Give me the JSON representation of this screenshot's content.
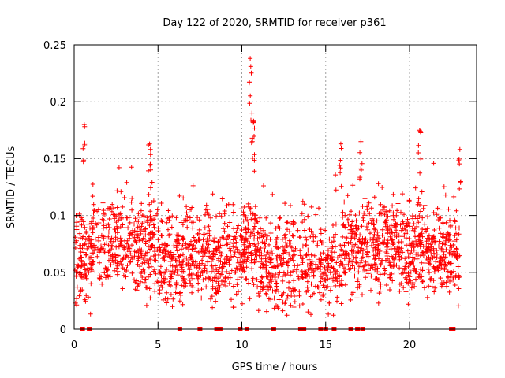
{
  "chart_data": {
    "type": "scatter",
    "title": "Day 122 of 2020, SRMTID for receiver p361",
    "xlabel": "GPS time / hours",
    "ylabel": "SRMTID / TECUs",
    "xlim": [
      0,
      24
    ],
    "ylim": [
      0,
      0.25
    ],
    "x_ticks": [
      0,
      5,
      10,
      15,
      20
    ],
    "y_ticks": [
      0,
      0.05,
      0.1,
      0.15,
      0.2,
      0.25
    ],
    "x_tick_labels": [
      "0",
      "5",
      "10",
      "15",
      "20"
    ],
    "y_tick_labels": [
      "0",
      "0.05",
      "0.1",
      "0.15",
      "0.2",
      "0.25"
    ],
    "grid": true,
    "marker": "+",
    "color": "#ff0000",
    "zero_markers_x": [
      0.5,
      0.9,
      6.3,
      7.5,
      8.5,
      8.7,
      9.9,
      10.3,
      11.9,
      13.5,
      13.7,
      14.7,
      15.0,
      15.5,
      16.5,
      16.9,
      17.2,
      22.5,
      22.6
    ],
    "peaks": [
      {
        "x": 0.6,
        "y": 0.18
      },
      {
        "x": 4.5,
        "y": 0.163
      },
      {
        "x": 10.5,
        "y": 0.238
      },
      {
        "x": 10.6,
        "y": 0.19
      },
      {
        "x": 10.7,
        "y": 0.183
      },
      {
        "x": 15.9,
        "y": 0.163
      },
      {
        "x": 17.1,
        "y": 0.165
      },
      {
        "x": 20.6,
        "y": 0.175
      },
      {
        "x": 23.0,
        "y": 0.158
      }
    ]
  }
}
